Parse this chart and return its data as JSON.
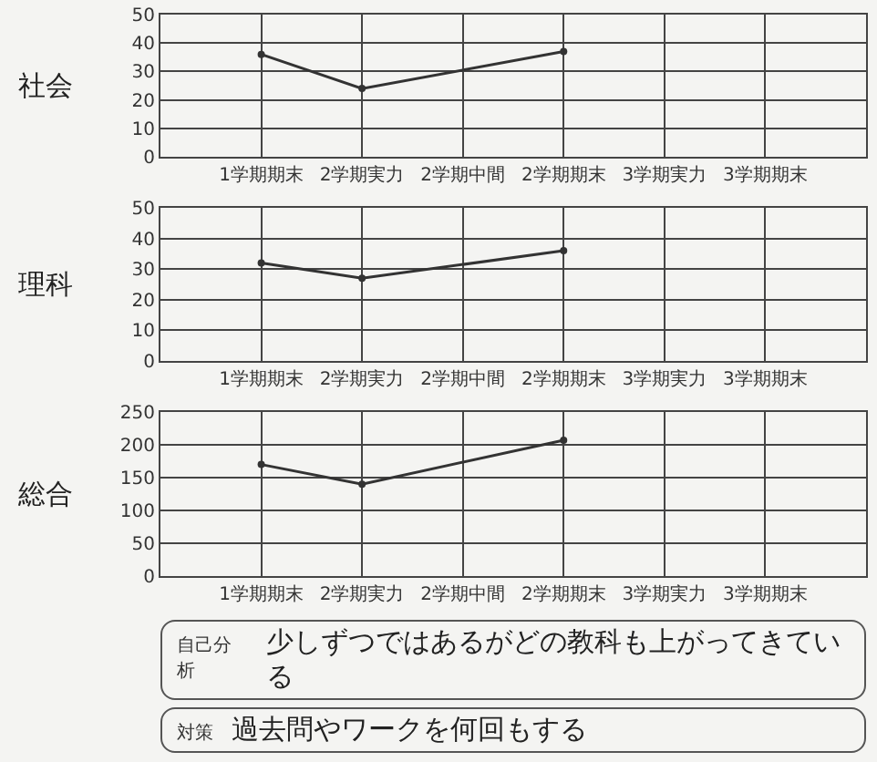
{
  "chart_data": [
    {
      "type": "line",
      "ylabel": "社会",
      "categories": [
        "1学期期末",
        "2学期実力",
        "2学期中間",
        "2学期期末",
        "3学期実力",
        "3学期期末"
      ],
      "series": [
        {
          "color": "#333333",
          "values": [
            36,
            24,
            null,
            37,
            null,
            null
          ]
        }
      ],
      "ylim": [
        0,
        50
      ],
      "yticks": [
        0,
        10,
        20,
        30,
        40,
        50
      ],
      "grid": true,
      "marker": "circle",
      "line_style": "solid"
    },
    {
      "type": "line",
      "ylabel": "理科",
      "categories": [
        "1学期期末",
        "2学期実力",
        "2学期中間",
        "2学期期末",
        "3学期実力",
        "3学期期末"
      ],
      "series": [
        {
          "color": "#333333",
          "values": [
            32,
            27,
            null,
            36,
            null,
            null
          ]
        }
      ],
      "ylim": [
        0,
        50
      ],
      "yticks": [
        0,
        10,
        20,
        30,
        40,
        50
      ],
      "grid": true,
      "marker": "circle",
      "line_style": "solid"
    },
    {
      "type": "line",
      "ylabel": "総合",
      "categories": [
        "1学期期末",
        "2学期実力",
        "2学期中間",
        "2学期期末",
        "3学期実力",
        "3学期期末"
      ],
      "series": [
        {
          "color": "#333333",
          "values": [
            170,
            140,
            null,
            207,
            null,
            null
          ]
        }
      ],
      "ylim": [
        0,
        250
      ],
      "yticks": [
        0,
        50,
        100,
        150,
        200,
        250
      ],
      "grid": true,
      "marker": "circle",
      "line_style": "solid"
    },
    {
      "type": "other",
      "annotations": [
        "自己分析",
        "少しずつではあるがどの教科も上がってきている",
        "対策",
        "過去問やワークを何回もする"
      ]
    }
  ]
}
